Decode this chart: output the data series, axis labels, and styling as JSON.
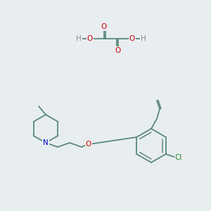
{
  "bg_color": "#e8edf0",
  "bond_color": "#5a8a7a",
  "bond_lw": 1.3,
  "atom_colors": {
    "O": "#cc0000",
    "N": "#0000cc",
    "Cl": "#228b22",
    "H": "#888888",
    "C": "#5a8a7a"
  },
  "font_size": 7.5
}
